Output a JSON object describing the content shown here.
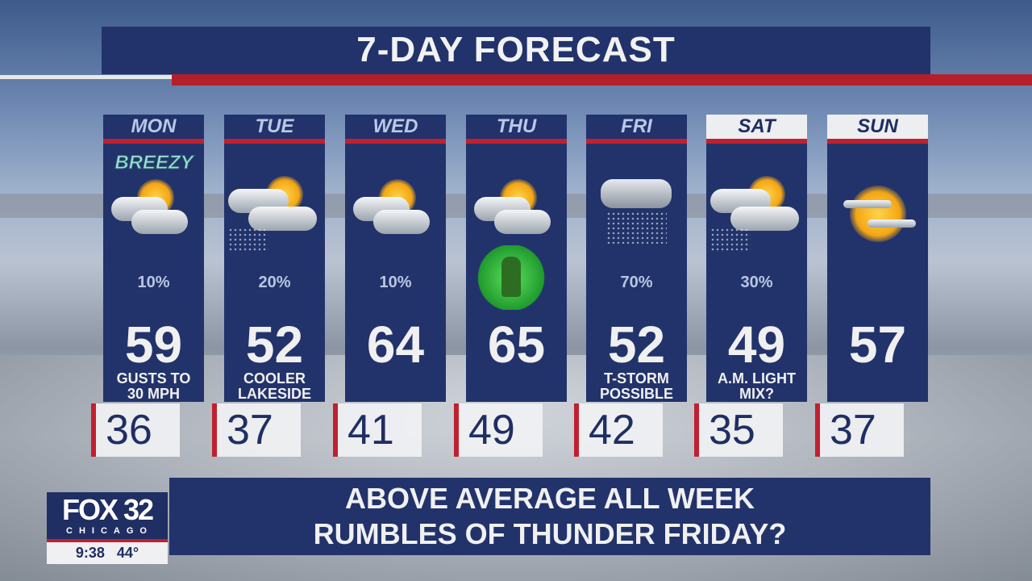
{
  "title": "7-DAY FORECAST",
  "days": [
    {
      "day": "MON",
      "badge": "BREEZY",
      "icon": "partly-cloudy-icon",
      "pop": "10%",
      "high": "59",
      "note1": "GUSTS TO",
      "note2": "30 MPH",
      "low": "36"
    },
    {
      "day": "TUE",
      "icon": "partly-cloudy-showers-icon",
      "pop": "20%",
      "high": "52",
      "note1": "COOLER",
      "note2": "LAKESIDE",
      "low": "37"
    },
    {
      "day": "WED",
      "icon": "partly-cloudy-icon",
      "pop": "10%",
      "high": "64",
      "note1": "",
      "note2": "",
      "low": "41"
    },
    {
      "day": "THU",
      "icon": "partly-cloudy-icon",
      "extra_icon": "leprechaun-shamrock-icon",
      "high": "65",
      "note1": "",
      "note2": "",
      "low": "49"
    },
    {
      "day": "FRI",
      "icon": "rain-cloud-icon",
      "pop": "70%",
      "high": "52",
      "note1": "T-STORM",
      "note2": "POSSIBLE",
      "low": "42"
    },
    {
      "day": "SAT",
      "icon": "partly-cloudy-showers-icon",
      "pop": "30%",
      "high": "49",
      "note1": "A.M. LIGHT",
      "note2": "MIX?",
      "low": "35"
    },
    {
      "day": "SUN",
      "icon": "mostly-sunny-icon",
      "pop": "",
      "high": "57",
      "note1": "",
      "note2": "",
      "low": "37"
    }
  ],
  "banner": {
    "line1": "ABOVE AVERAGE ALL WEEK",
    "line2": "RUMBLES OF THUNDER FRIDAY?"
  },
  "logo": {
    "brand": "FOX 32",
    "city": "CHICAGO",
    "time": "9:38",
    "temp": "44°"
  },
  "colors": {
    "navy": "#22336b",
    "red": "#c12030"
  }
}
